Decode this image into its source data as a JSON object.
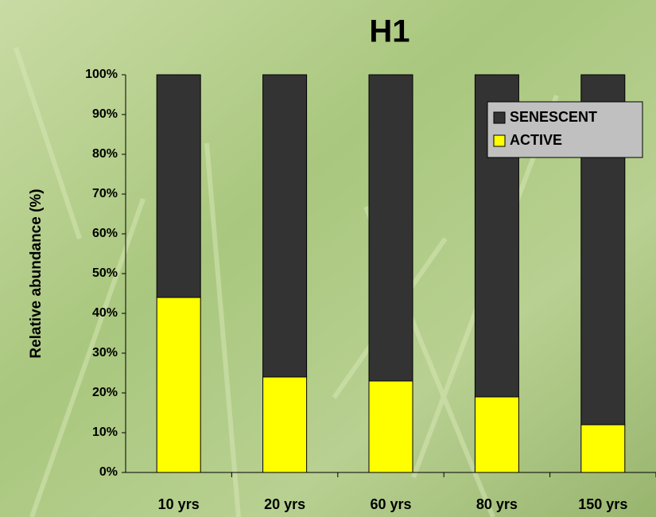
{
  "chart_data": {
    "type": "stacked_bar",
    "title": "H1",
    "y_label": "Relative abundance (%)",
    "categories": [
      "10 yrs",
      "20 yrs",
      "60 yrs",
      "80 yrs",
      "150 yrs"
    ],
    "series": [
      {
        "name": "ACTIVE",
        "color": "#ffff00",
        "values": [
          44,
          24,
          23,
          19,
          12
        ]
      },
      {
        "name": "SENESCENT",
        "color": "#333333",
        "values": [
          56,
          76,
          77,
          81,
          88
        ]
      }
    ],
    "ylim": [
      0,
      100
    ],
    "yticks": [
      {
        "value": 0,
        "label": "0%"
      },
      {
        "value": 10,
        "label": "10%"
      },
      {
        "value": 20,
        "label": "20%"
      },
      {
        "value": 30,
        "label": "30%"
      },
      {
        "value": 40,
        "label": "40%"
      },
      {
        "value": 50,
        "label": "50%"
      },
      {
        "value": 60,
        "label": "60%"
      },
      {
        "value": 70,
        "label": "70%"
      },
      {
        "value": 80,
        "label": "80%"
      },
      {
        "value": 90,
        "label": "90%"
      },
      {
        "value": 100,
        "label": "100%"
      }
    ],
    "legend": "upper right"
  }
}
